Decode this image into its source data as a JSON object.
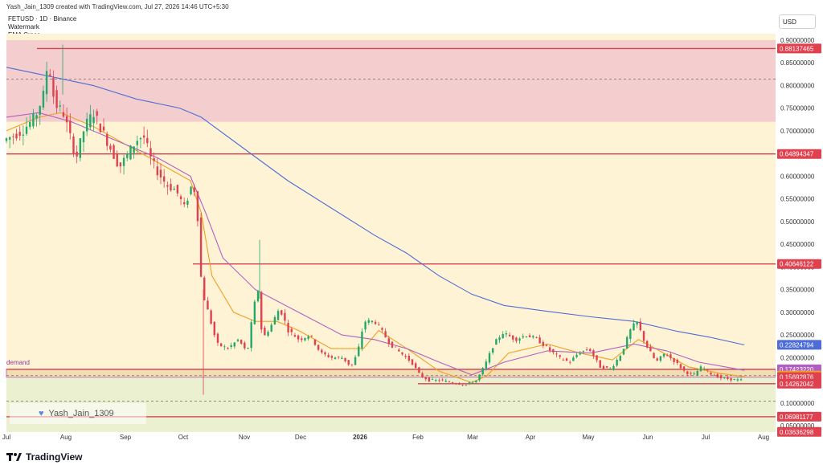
{
  "header": {
    "created_text": "Yash_Jain_1309 created with TradingView.com, Jul 27, 2026 14:46 UTC+5:30"
  },
  "legend": {
    "symbol_line": "FETUSD · 1D · Binance",
    "indicator_1": "Watermark",
    "indicator_2": "EMA Cross"
  },
  "currency_button": "USD",
  "watermark_text": "Yash_Jain_1309",
  "brand_text": "TradingView",
  "demand_label": "demand",
  "colors": {
    "background": "#ffffff",
    "plot_bg": "#fff3d6",
    "supply_zone": "#f2c7cd",
    "demand_zone": "#ecd9a8",
    "green_zone": "#e6efcf",
    "level_line": "#d6404f",
    "ema_fast": "#f0a020",
    "ema_slow": "#b060c0",
    "ema_long": "#4d6cd6",
    "candle_up": "#22a86a",
    "candle_down": "#e0414f"
  },
  "chart_data": {
    "type": "candlestick",
    "title": "FETUSD · 1D · Binance",
    "x_tick_labels": [
      "Jul",
      "Aug",
      "Sep",
      "Oct",
      "Nov",
      "Dec",
      "2026",
      "Feb",
      "Mar",
      "Apr",
      "May",
      "Jun",
      "Jul",
      "Aug"
    ],
    "y_tick_labels": [
      "0.90000000",
      "0.85000000",
      "0.80000000",
      "0.75000000",
      "0.70000000",
      "0.65000000",
      "0.60000000",
      "0.55000000",
      "0.50000000",
      "0.45000000",
      "0.40000000",
      "0.35000000",
      "0.30000000",
      "0.25000000",
      "0.20000000",
      "0.15000000",
      "0.10000000",
      "0.05000000"
    ],
    "y_tick_values": [
      0.9,
      0.85,
      0.8,
      0.75,
      0.7,
      0.65,
      0.6,
      0.55,
      0.5,
      0.45,
      0.4,
      0.35,
      0.3,
      0.25,
      0.2,
      0.15,
      0.1,
      0.05
    ],
    "ylim": [
      0.035,
      0.93
    ],
    "grid": false,
    "zones": [
      {
        "name": "supply",
        "top": 0.9,
        "bottom": 0.72
      },
      {
        "name": "demand",
        "top": 0.1742322,
        "bottom": 0.1569288
      },
      {
        "name": "lower",
        "top": 0.1569288,
        "bottom": 0.0363
      }
    ],
    "levels": [
      {
        "value": 0.881374,
        "label": "0.88137465",
        "style": "solid"
      },
      {
        "value": 0.8139,
        "label": "",
        "style": "dashed"
      },
      {
        "value": 0.648943,
        "label": "0.64894347",
        "style": "solid"
      },
      {
        "value": 0.406461,
        "label": "0.40646122",
        "style": "solid"
      },
      {
        "value": 0.174232,
        "label": "0.17423220",
        "style": "solid"
      },
      {
        "value": 0.160479,
        "label": "0.16047883",
        "style": "dashed"
      },
      {
        "value": 0.14262,
        "label": "0.14262042",
        "style": "solid"
      },
      {
        "value": 0.104,
        "label": "",
        "style": "dashed"
      },
      {
        "value": 0.069811,
        "label": "0.06981177",
        "style": "solid"
      }
    ],
    "price_tags": [
      {
        "label": "0.88137465",
        "value": 0.881374,
        "color": "#e0414f"
      },
      {
        "label": "0.64894347",
        "value": 0.648943,
        "color": "#e0414f"
      },
      {
        "label": "0.40646122",
        "value": 0.406461,
        "color": "#e0414f"
      },
      {
        "label": "0.22824794",
        "value": 0.228248,
        "color": "#4d6cd6"
      },
      {
        "label": "0.17423220",
        "value": 0.174232,
        "color": "#b060c0"
      },
      {
        "label": "0.16047883",
        "value": 0.160479,
        "color": "#f0a020"
      },
      {
        "label": "0.15692876",
        "value": 0.156929,
        "color": "#e0414f"
      },
      {
        "label": "0.14262042",
        "value": 0.14262,
        "color": "#e0414f"
      },
      {
        "label": "0.06981177",
        "value": 0.069811,
        "color": "#e0414f"
      },
      {
        "label": "0.03636298",
        "value": 0.036363,
        "color": "#e0414f"
      }
    ],
    "close_path": [
      [
        0,
        0.68
      ],
      [
        8,
        0.7
      ],
      [
        14,
        0.73
      ],
      [
        18,
        0.78
      ],
      [
        20,
        0.86
      ],
      [
        23,
        0.76
      ],
      [
        27,
        0.74
      ],
      [
        30,
        0.69
      ],
      [
        33,
        0.64
      ],
      [
        37,
        0.71
      ],
      [
        41,
        0.74
      ],
      [
        45,
        0.7
      ],
      [
        49,
        0.66
      ],
      [
        53,
        0.62
      ],
      [
        57,
        0.65
      ],
      [
        61,
        0.68
      ],
      [
        64,
        0.69
      ],
      [
        68,
        0.63
      ],
      [
        72,
        0.6
      ],
      [
        75,
        0.58
      ],
      [
        79,
        0.57
      ],
      [
        83,
        0.53
      ],
      [
        87,
        0.59
      ],
      [
        89,
        0.52
      ],
      [
        91,
        0.35
      ],
      [
        94,
        0.3
      ],
      [
        98,
        0.23
      ],
      [
        103,
        0.22
      ],
      [
        108,
        0.24
      ],
      [
        112,
        0.21
      ],
      [
        115,
        0.31
      ],
      [
        117,
        0.35
      ],
      [
        119,
        0.24
      ],
      [
        123,
        0.27
      ],
      [
        127,
        0.31
      ],
      [
        131,
        0.26
      ],
      [
        136,
        0.24
      ],
      [
        141,
        0.25
      ],
      [
        146,
        0.21
      ],
      [
        151,
        0.2
      ],
      [
        156,
        0.2
      ],
      [
        160,
        0.18
      ],
      [
        163,
        0.21
      ],
      [
        166,
        0.28
      ],
      [
        171,
        0.28
      ],
      [
        174,
        0.26
      ],
      [
        178,
        0.23
      ],
      [
        183,
        0.21
      ],
      [
        188,
        0.19
      ],
      [
        192,
        0.16
      ],
      [
        196,
        0.15
      ],
      [
        201,
        0.15
      ],
      [
        207,
        0.145
      ],
      [
        213,
        0.14
      ],
      [
        218,
        0.15
      ],
      [
        222,
        0.185
      ],
      [
        226,
        0.23
      ],
      [
        230,
        0.255
      ],
      [
        236,
        0.24
      ],
      [
        241,
        0.25
      ],
      [
        246,
        0.24
      ],
      [
        251,
        0.22
      ],
      [
        256,
        0.2
      ],
      [
        261,
        0.19
      ],
      [
        265,
        0.21
      ],
      [
        270,
        0.22
      ],
      [
        275,
        0.18
      ],
      [
        280,
        0.175
      ],
      [
        285,
        0.21
      ],
      [
        289,
        0.26
      ],
      [
        292,
        0.28
      ],
      [
        296,
        0.23
      ],
      [
        301,
        0.19
      ],
      [
        305,
        0.21
      ],
      [
        310,
        0.19
      ],
      [
        314,
        0.17
      ],
      [
        318,
        0.16
      ],
      [
        322,
        0.18
      ],
      [
        326,
        0.165
      ],
      [
        331,
        0.155
      ],
      [
        336,
        0.152
      ],
      [
        341,
        0.15
      ]
    ],
    "series": [
      {
        "name": "",
        "color": "#f0a020",
        "values": [
          [
            0,
            0.7
          ],
          [
            15,
            0.73
          ],
          [
            25,
            0.74
          ],
          [
            40,
            0.71
          ],
          [
            55,
            0.67
          ],
          [
            70,
            0.63
          ],
          [
            85,
            0.59
          ],
          [
            90,
            0.52
          ],
          [
            95,
            0.38
          ],
          [
            105,
            0.3
          ],
          [
            115,
            0.28
          ],
          [
            125,
            0.28
          ],
          [
            135,
            0.26
          ],
          [
            150,
            0.22
          ],
          [
            165,
            0.22
          ],
          [
            172,
            0.26
          ],
          [
            185,
            0.22
          ],
          [
            200,
            0.17
          ],
          [
            215,
            0.145
          ],
          [
            222,
            0.16
          ],
          [
            232,
            0.21
          ],
          [
            250,
            0.23
          ],
          [
            265,
            0.21
          ],
          [
            280,
            0.195
          ],
          [
            292,
            0.24
          ],
          [
            300,
            0.22
          ],
          [
            315,
            0.18
          ],
          [
            330,
            0.165
          ],
          [
            341,
            0.158
          ]
        ]
      },
      {
        "name": "",
        "color": "#b060c0",
        "values": [
          [
            0,
            0.73
          ],
          [
            15,
            0.74
          ],
          [
            30,
            0.72
          ],
          [
            50,
            0.68
          ],
          [
            70,
            0.64
          ],
          [
            85,
            0.6
          ],
          [
            92,
            0.52
          ],
          [
            100,
            0.42
          ],
          [
            115,
            0.35
          ],
          [
            135,
            0.3
          ],
          [
            155,
            0.25
          ],
          [
            170,
            0.24
          ],
          [
            185,
            0.22
          ],
          [
            200,
            0.19
          ],
          [
            215,
            0.162
          ],
          [
            230,
            0.19
          ],
          [
            250,
            0.215
          ],
          [
            270,
            0.21
          ],
          [
            290,
            0.23
          ],
          [
            305,
            0.215
          ],
          [
            320,
            0.19
          ],
          [
            341,
            0.172
          ]
        ]
      },
      {
        "name": "",
        "color": "#4d6cd6",
        "values": [
          [
            0,
            0.84
          ],
          [
            20,
            0.82
          ],
          [
            40,
            0.8
          ],
          [
            60,
            0.77
          ],
          [
            80,
            0.75
          ],
          [
            90,
            0.73
          ],
          [
            110,
            0.66
          ],
          [
            130,
            0.59
          ],
          [
            150,
            0.53
          ],
          [
            170,
            0.47
          ],
          [
            185,
            0.43
          ],
          [
            200,
            0.38
          ],
          [
            215,
            0.34
          ],
          [
            230,
            0.315
          ],
          [
            250,
            0.302
          ],
          [
            270,
            0.29
          ],
          [
            290,
            0.28
          ],
          [
            310,
            0.258
          ],
          [
            325,
            0.245
          ],
          [
            341,
            0.228
          ]
        ]
      }
    ],
    "x_day_range": [
      0,
      345
    ]
  }
}
